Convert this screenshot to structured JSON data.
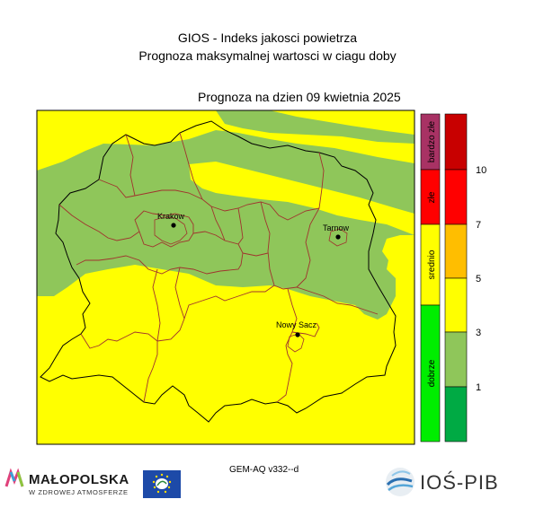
{
  "header": {
    "title": "GIOS - Indeks jakosci powietrza",
    "subtitle": "Prognoza maksymalnej wartosci w ciagu doby",
    "forecast_date": "Prognoza na dzien  09 kwietnia 2025"
  },
  "cities": [
    {
      "name": "Krakow"
    },
    {
      "name": "Tarnow"
    },
    {
      "name": "Nowy Sacz"
    }
  ],
  "legend": {
    "categories": [
      {
        "label": "bardzo złe",
        "color": "#a83264"
      },
      {
        "label": "złe",
        "color": "#ff0000"
      },
      {
        "label": "srednio",
        "color": "#ffff00"
      },
      {
        "label": "dobrze",
        "color": "#00ee00"
      }
    ],
    "scale_colors": [
      "#c80000",
      "#ff0000",
      "#ffbe00",
      "#ffff00",
      "#8fc65a",
      "#00aa44"
    ],
    "ticks": [
      "10",
      "7",
      "5",
      "3",
      "1"
    ]
  },
  "map_colors": {
    "base": "#ffff00",
    "band": "#8fc65a"
  },
  "footer": {
    "model": "GEM-AQ v332--d",
    "malopolska_name": "MAŁOPOLSKA",
    "malopolska_tagline": "W ZDROWEJ ATMOSFERZE",
    "ios_name": "IOŚ-PIB"
  }
}
